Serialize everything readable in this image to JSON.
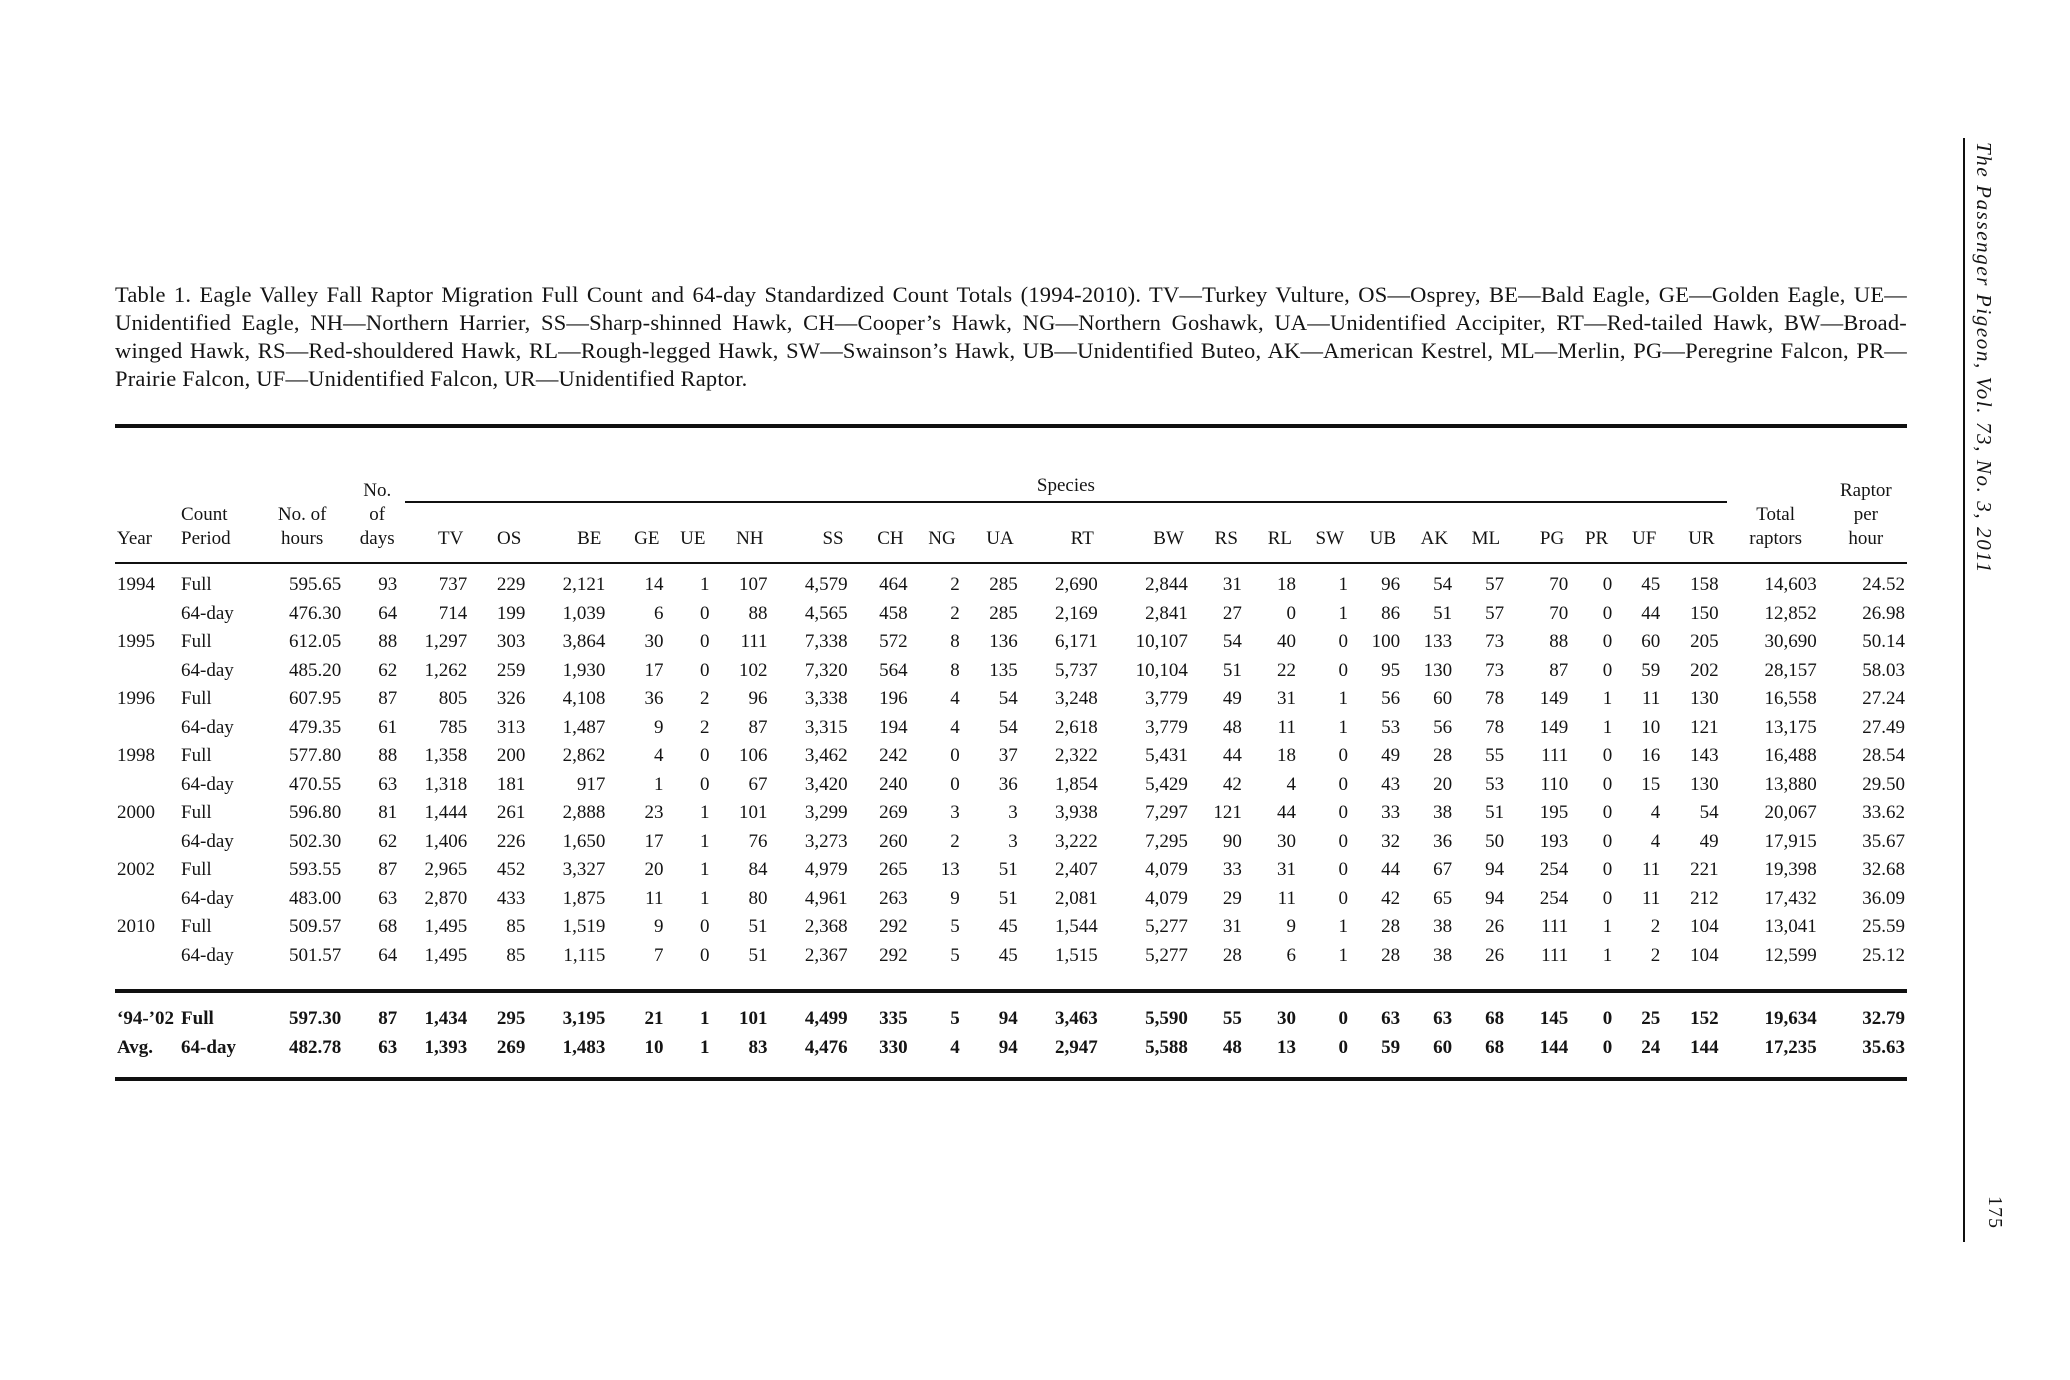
{
  "page": {
    "sidebar_title": "The Passenger Pigeon, Vol. 73, No. 3, 2011",
    "page_number": "175"
  },
  "caption": "Table 1. Eagle Valley Fall Raptor Migration Full Count and 64-day Standardized Count Totals (1994-2010). TV—Turkey Vulture, OS—Osprey, BE—Bald Eagle, GE—Golden Eagle, UE—Unidentified Eagle, NH—Northern Harrier, SS—Sharp-shinned Hawk, CH—Cooper’s Hawk, NG—Northern Goshawk, UA—Unidentified Accipiter, RT—Red-tailed Hawk, BW—Broad-winged Hawk, RS—Red-shouldered Hawk, RL—Rough-legged Hawk, SW—Swainson’s Hawk, UB—Unidentified Buteo, AK—American Kestrel, ML—Merlin, PG—Peregrine Falcon, PR—Prairie Falcon, UF—Unidentified Falcon, UR—Unidentified Raptor.",
  "table": {
    "header": {
      "year": "Year",
      "count_period": "Count\nPeriod",
      "no_of_hours": "No. of\nhours",
      "no_of_days": "No.\nof\ndays",
      "species_group": "Species",
      "species": [
        "TV",
        "OS",
        "BE",
        "GE",
        "UE",
        "NH",
        "SS",
        "CH",
        "NG",
        "UA",
        "RT",
        "BW",
        "RS",
        "RL",
        "SW",
        "UB",
        "AK",
        "ML",
        "PG",
        "PR",
        "UF",
        "UR"
      ],
      "total_raptors": "Total\nraptors",
      "raptor_per_hour": "Raptor\nper\nhour"
    },
    "rows": [
      {
        "year": "1994",
        "period": "Full",
        "hours": "595.65",
        "days": "93",
        "values": [
          "737",
          "229",
          "2,121",
          "14",
          "1",
          "107",
          "4,579",
          "464",
          "2",
          "285",
          "2,690",
          "2,844",
          "31",
          "18",
          "1",
          "96",
          "54",
          "57",
          "70",
          "0",
          "45",
          "158"
        ],
        "total": "14,603",
        "per_hour": "24.52"
      },
      {
        "year": "",
        "period": "64-day",
        "hours": "476.30",
        "days": "64",
        "values": [
          "714",
          "199",
          "1,039",
          "6",
          "0",
          "88",
          "4,565",
          "458",
          "2",
          "285",
          "2,169",
          "2,841",
          "27",
          "0",
          "1",
          "86",
          "51",
          "57",
          "70",
          "0",
          "44",
          "150"
        ],
        "total": "12,852",
        "per_hour": "26.98"
      },
      {
        "year": "1995",
        "period": "Full",
        "hours": "612.05",
        "days": "88",
        "values": [
          "1,297",
          "303",
          "3,864",
          "30",
          "0",
          "111",
          "7,338",
          "572",
          "8",
          "136",
          "6,171",
          "10,107",
          "54",
          "40",
          "0",
          "100",
          "133",
          "73",
          "88",
          "0",
          "60",
          "205"
        ],
        "total": "30,690",
        "per_hour": "50.14"
      },
      {
        "year": "",
        "period": "64-day",
        "hours": "485.20",
        "days": "62",
        "values": [
          "1,262",
          "259",
          "1,930",
          "17",
          "0",
          "102",
          "7,320",
          "564",
          "8",
          "135",
          "5,737",
          "10,104",
          "51",
          "22",
          "0",
          "95",
          "130",
          "73",
          "87",
          "0",
          "59",
          "202"
        ],
        "total": "28,157",
        "per_hour": "58.03"
      },
      {
        "year": "1996",
        "period": "Full",
        "hours": "607.95",
        "days": "87",
        "values": [
          "805",
          "326",
          "4,108",
          "36",
          "2",
          "96",
          "3,338",
          "196",
          "4",
          "54",
          "3,248",
          "3,779",
          "49",
          "31",
          "1",
          "56",
          "60",
          "78",
          "149",
          "1",
          "11",
          "130"
        ],
        "total": "16,558",
        "per_hour": "27.24"
      },
      {
        "year": "",
        "period": "64-day",
        "hours": "479.35",
        "days": "61",
        "values": [
          "785",
          "313",
          "1,487",
          "9",
          "2",
          "87",
          "3,315",
          "194",
          "4",
          "54",
          "2,618",
          "3,779",
          "48",
          "11",
          "1",
          "53",
          "56",
          "78",
          "149",
          "1",
          "10",
          "121"
        ],
        "total": "13,175",
        "per_hour": "27.49"
      },
      {
        "year": "1998",
        "period": "Full",
        "hours": "577.80",
        "days": "88",
        "values": [
          "1,358",
          "200",
          "2,862",
          "4",
          "0",
          "106",
          "3,462",
          "242",
          "0",
          "37",
          "2,322",
          "5,431",
          "44",
          "18",
          "0",
          "49",
          "28",
          "55",
          "111",
          "0",
          "16",
          "143"
        ],
        "total": "16,488",
        "per_hour": "28.54"
      },
      {
        "year": "",
        "period": "64-day",
        "hours": "470.55",
        "days": "63",
        "values": [
          "1,318",
          "181",
          "917",
          "1",
          "0",
          "67",
          "3,420",
          "240",
          "0",
          "36",
          "1,854",
          "5,429",
          "42",
          "4",
          "0",
          "43",
          "20",
          "53",
          "110",
          "0",
          "15",
          "130"
        ],
        "total": "13,880",
        "per_hour": "29.50"
      },
      {
        "year": "2000",
        "period": "Full",
        "hours": "596.80",
        "days": "81",
        "values": [
          "1,444",
          "261",
          "2,888",
          "23",
          "1",
          "101",
          "3,299",
          "269",
          "3",
          "3",
          "3,938",
          "7,297",
          "121",
          "44",
          "0",
          "33",
          "38",
          "51",
          "195",
          "0",
          "4",
          "54"
        ],
        "total": "20,067",
        "per_hour": "33.62"
      },
      {
        "year": "",
        "period": "64-day",
        "hours": "502.30",
        "days": "62",
        "values": [
          "1,406",
          "226",
          "1,650",
          "17",
          "1",
          "76",
          "3,273",
          "260",
          "2",
          "3",
          "3,222",
          "7,295",
          "90",
          "30",
          "0",
          "32",
          "36",
          "50",
          "193",
          "0",
          "4",
          "49"
        ],
        "total": "17,915",
        "per_hour": "35.67"
      },
      {
        "year": "2002",
        "period": "Full",
        "hours": "593.55",
        "days": "87",
        "values": [
          "2,965",
          "452",
          "3,327",
          "20",
          "1",
          "84",
          "4,979",
          "265",
          "13",
          "51",
          "2,407",
          "4,079",
          "33",
          "31",
          "0",
          "44",
          "67",
          "94",
          "254",
          "0",
          "11",
          "221"
        ],
        "total": "19,398",
        "per_hour": "32.68"
      },
      {
        "year": "",
        "period": "64-day",
        "hours": "483.00",
        "days": "63",
        "values": [
          "2,870",
          "433",
          "1,875",
          "11",
          "1",
          "80",
          "4,961",
          "263",
          "9",
          "51",
          "2,081",
          "4,079",
          "29",
          "11",
          "0",
          "42",
          "65",
          "94",
          "254",
          "0",
          "11",
          "212"
        ],
        "total": "17,432",
        "per_hour": "36.09"
      },
      {
        "year": "2010",
        "period": "Full",
        "hours": "509.57",
        "days": "68",
        "values": [
          "1,495",
          "85",
          "1,519",
          "9",
          "0",
          "51",
          "2,368",
          "292",
          "5",
          "45",
          "1,544",
          "5,277",
          "31",
          "9",
          "1",
          "28",
          "38",
          "26",
          "111",
          "1",
          "2",
          "104"
        ],
        "total": "13,041",
        "per_hour": "25.59"
      },
      {
        "year": "",
        "period": "64-day",
        "hours": "501.57",
        "days": "64",
        "values": [
          "1,495",
          "85",
          "1,115",
          "7",
          "0",
          "51",
          "2,367",
          "292",
          "5",
          "45",
          "1,515",
          "5,277",
          "28",
          "6",
          "1",
          "28",
          "38",
          "26",
          "111",
          "1",
          "2",
          "104"
        ],
        "total": "12,599",
        "per_hour": "25.12"
      }
    ],
    "summary_rows": [
      {
        "year": "‘94-’02",
        "period": "Full",
        "hours": "597.30",
        "days": "87",
        "values": [
          "1,434",
          "295",
          "3,195",
          "21",
          "1",
          "101",
          "4,499",
          "335",
          "5",
          "94",
          "3,463",
          "5,590",
          "55",
          "30",
          "0",
          "63",
          "63",
          "68",
          "145",
          "0",
          "25",
          "152"
        ],
        "total": "19,634",
        "per_hour": "32.79"
      },
      {
        "year": "Avg.",
        "period": "64-day",
        "hours": "482.78",
        "days": "63",
        "values": [
          "1,393",
          "269",
          "1,483",
          "10",
          "1",
          "83",
          "4,476",
          "330",
          "4",
          "94",
          "2,947",
          "5,588",
          "48",
          "13",
          "0",
          "59",
          "60",
          "68",
          "144",
          "0",
          "24",
          "144"
        ],
        "total": "17,235",
        "per_hour": "35.63"
      }
    ]
  }
}
